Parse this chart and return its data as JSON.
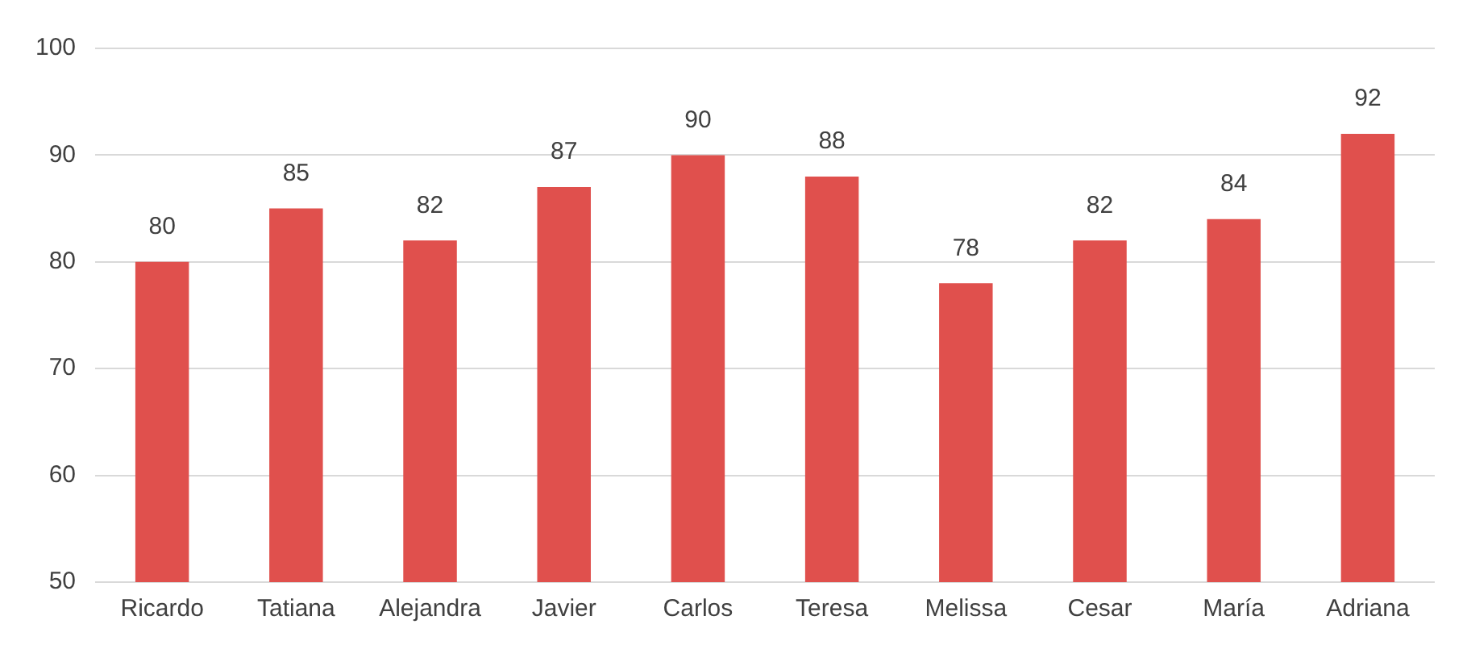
{
  "chart_data": {
    "type": "bar",
    "categories": [
      "Ricardo",
      "Tatiana",
      "Alejandra",
      "Javier",
      "Carlos",
      "Teresa",
      "Melissa",
      "Cesar",
      "María",
      "Adriana"
    ],
    "values": [
      80,
      85,
      82,
      87,
      90,
      88,
      78,
      82,
      84,
      92
    ],
    "color": "#e0504d",
    "ylim": [
      50,
      100
    ],
    "yticks": [
      50,
      60,
      70,
      80,
      90,
      100
    ],
    "grid": "y",
    "data_labels": true
  }
}
